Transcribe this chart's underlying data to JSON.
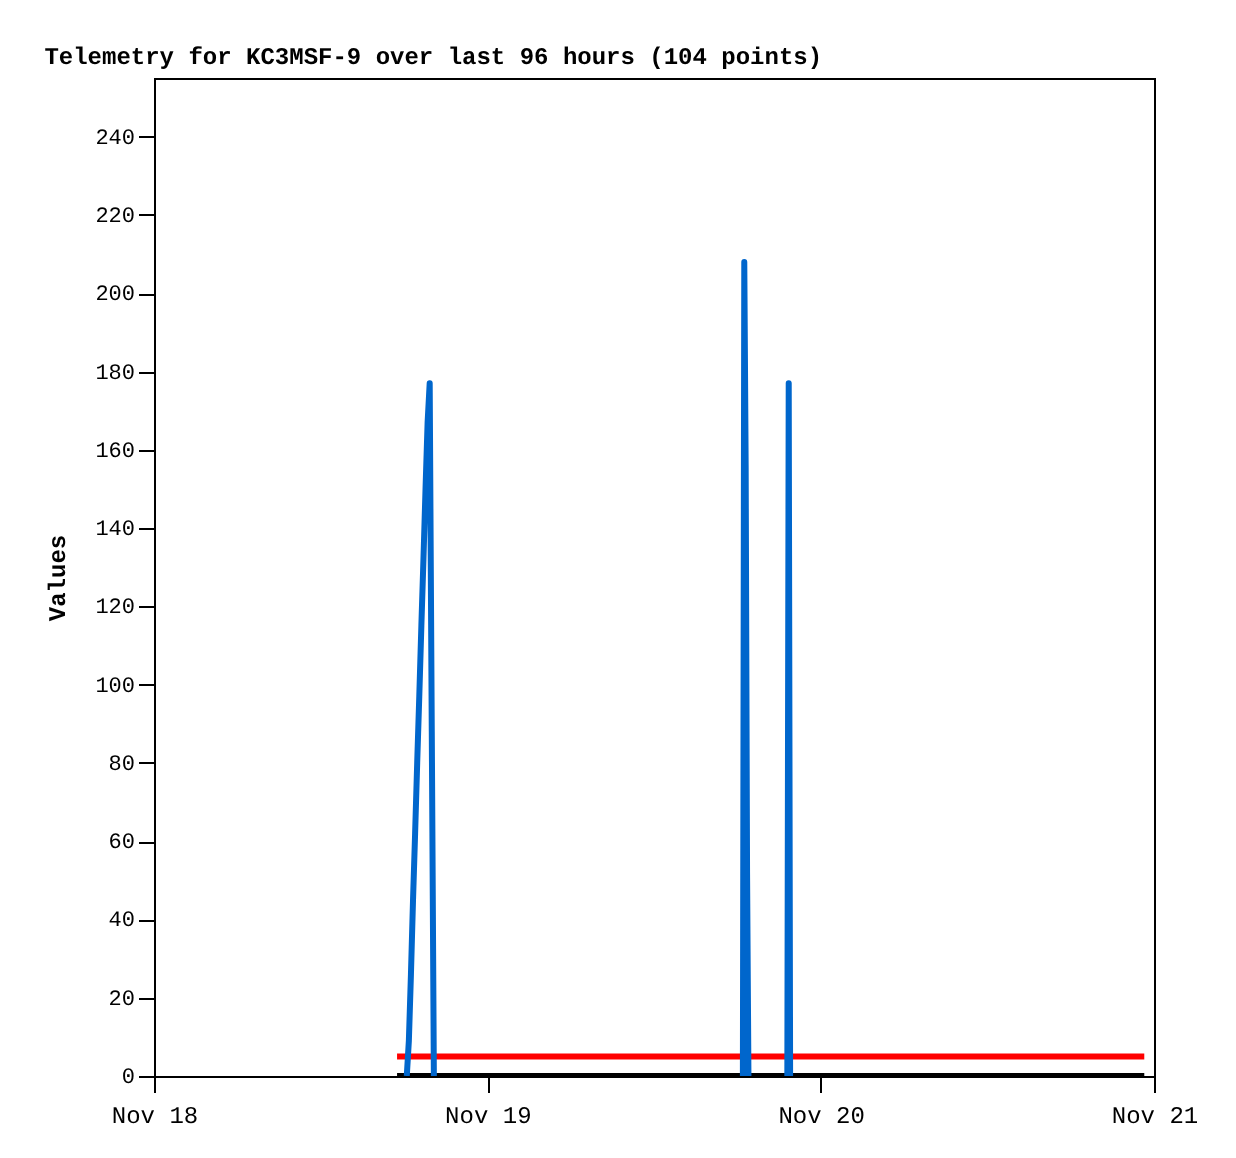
{
  "chart_data": {
    "type": "line",
    "title": "Telemetry for KC3MSF-9 over last 96 hours (104 points)",
    "ylabel": "Values",
    "xlim": [
      "--11-18",
      "--11-21"
    ],
    "xticks": [
      {
        "value": "--11-18",
        "label": "Nov 18"
      },
      {
        "value": "--11-19",
        "label": "Nov 19"
      },
      {
        "value": "--11-20",
        "label": "Nov 20"
      },
      {
        "value": "--11-21",
        "label": "Nov 21"
      }
    ],
    "ylim": [
      0,
      255
    ],
    "yticks": [
      0,
      20,
      40,
      60,
      80,
      100,
      120,
      140,
      160,
      180,
      200,
      220,
      240
    ],
    "grid": false,
    "marker": "none",
    "line_style": "solid",
    "series": [
      {
        "color": "#ff0000",
        "x": [
          "--11-18T17:30",
          "--11-20T23:18"
        ],
        "values": [
          5,
          5
        ]
      },
      {
        "color": "#000000",
        "x": [
          "--11-18T17:30",
          "--11-20T23:18"
        ],
        "values": [
          0,
          0
        ]
      },
      {
        "color": "#0066cc",
        "x": [
          "--11-18T18:12",
          "--11-18T18:21",
          "--11-18T18:30",
          "--11-18T18:39",
          "--11-18T18:48",
          "--11-18T18:57",
          "--11-18T19:06",
          "--11-18T19:15",
          "--11-18T19:24",
          "--11-18T19:33",
          "--11-18T19:42",
          "--11-18T19:51",
          "--11-18T20:00",
          "--11-18T20:09",
          "--11-19T06:00",
          "--11-19T18:24",
          "--11-19T18:30",
          "--11-19T18:36",
          "--11-19T18:42",
          "--11-19T18:48",
          "--11-19T20:00",
          "--11-19T21:36",
          "--11-19T21:42",
          "--11-19T21:48"
        ],
        "values": [
          0,
          9,
          26,
          45,
          62,
          80,
          97,
          115,
          132,
          150,
          167,
          177,
          88,
          0,
          null,
          0,
          208,
          156,
          52,
          0,
          null,
          0,
          177,
          0
        ]
      }
    ]
  }
}
